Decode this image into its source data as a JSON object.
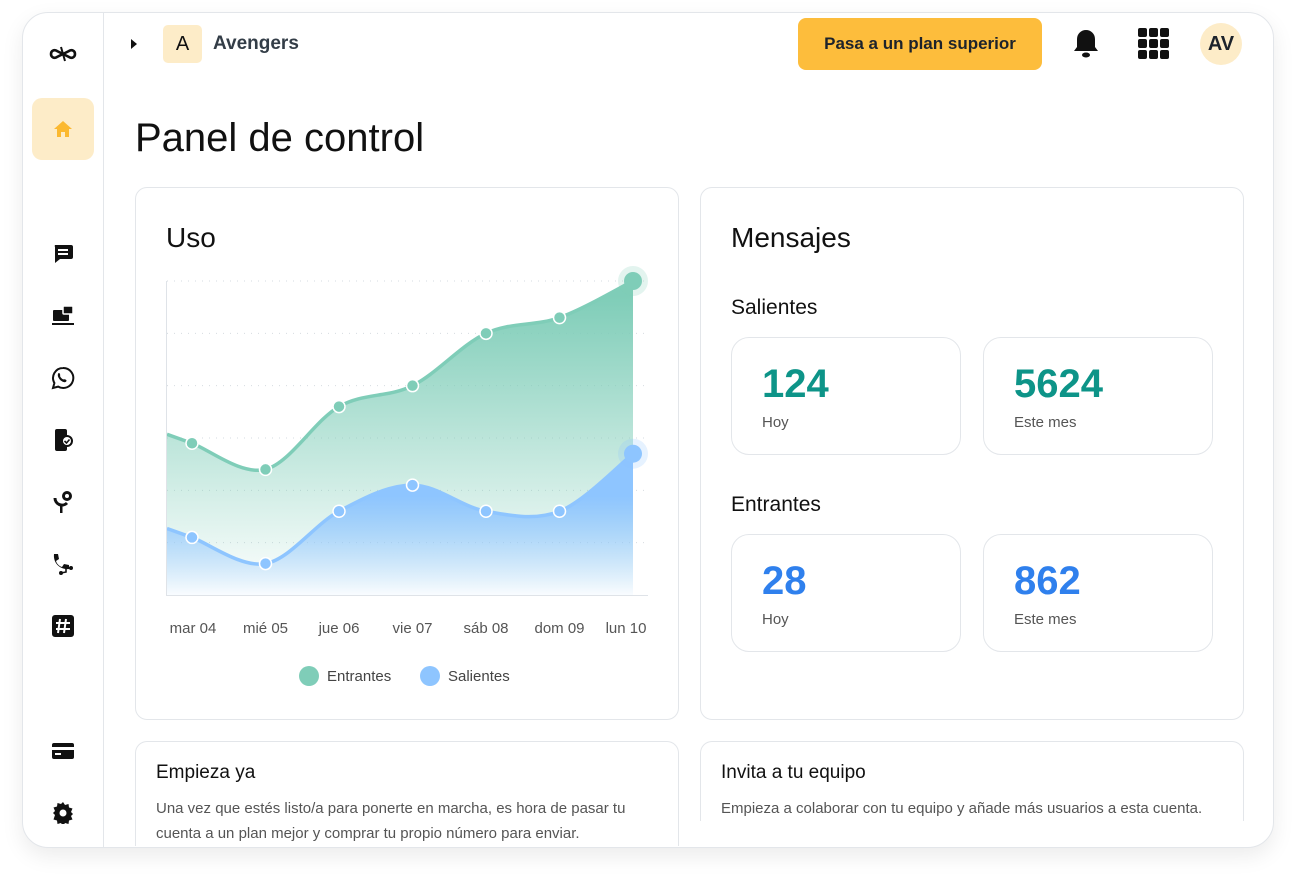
{
  "workspace": {
    "initial": "A",
    "name": "Avengers"
  },
  "header": {
    "upgrade_label": "Pasa a un plan superior",
    "avatar_initials": "AV"
  },
  "page_title": "Panel de control",
  "sidebar": {
    "items": [
      "logo-icon",
      "home-icon",
      "chat-icon",
      "inbox-icon",
      "whatsapp-icon",
      "phone-verify-icon",
      "voice-icon",
      "call-flow-icon",
      "hashtag-icon",
      "billing-icon",
      "settings-icon"
    ]
  },
  "usage": {
    "title": "Uso"
  },
  "chart_data": {
    "type": "area",
    "title": "Uso",
    "categories": [
      "mar 04",
      "mié 05",
      "jue 06",
      "vie 07",
      "sáb 08",
      "dom 09",
      "lun 10"
    ],
    "series": [
      {
        "name": "Entrantes",
        "color": "#7fcdb8",
        "values": [
          2.9,
          2.4,
          3.6,
          4.0,
          5.0,
          5.3,
          6.0
        ]
      },
      {
        "name": "Salientes",
        "color": "#8ec5ff",
        "values": [
          1.1,
          0.6,
          1.6,
          2.1,
          1.6,
          1.6,
          2.7
        ]
      }
    ],
    "ylim": [
      0,
      6
    ],
    "grid": true,
    "legend": "bottom"
  },
  "messages": {
    "title": "Mensajes",
    "outgoing": {
      "label": "Salientes",
      "today": "124",
      "today_label": "Hoy",
      "month": "5624",
      "month_label": "Este mes",
      "color": "#0d9488"
    },
    "incoming": {
      "label": "Entrantes",
      "today": "28",
      "today_label": "Hoy",
      "month": "862",
      "month_label": "Este mes",
      "color": "#2f80ed"
    }
  },
  "start": {
    "title": "Empieza ya",
    "text": "Una vez que estés listo/a para ponerte en marcha, es hora de pasar tu cuenta a un plan mejor y comprar tu propio número para enviar."
  },
  "invite": {
    "title": "Invita a tu equipo",
    "text": "Empieza a colaborar con tu equipo y añade más usuarios a esta cuenta."
  }
}
